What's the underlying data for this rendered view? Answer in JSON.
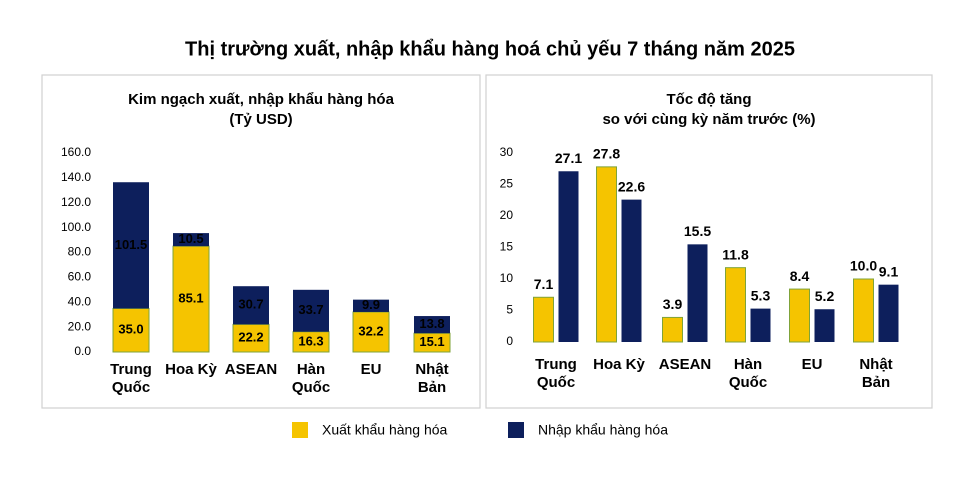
{
  "title": "Thị trường xuất, nhập khẩu hàng hoá chủ yếu 7 tháng năm 2025",
  "chart_data": [
    {
      "type": "stacked-bar",
      "title": "Kim ngạch xuất, nhập khẩu hàng hóa",
      "subtitle": "(Tỷ USD)",
      "categories": [
        "Trung\nQuốc",
        "Hoa Kỳ",
        "ASEAN",
        "Hàn\nQuốc",
        "EU",
        "Nhật\nBản"
      ],
      "series": [
        {
          "name": "Xuất khẩu hàng hóa",
          "color": "#f5c400",
          "values": [
            35.0,
            85.1,
            22.2,
            16.3,
            32.2,
            15.1
          ],
          "value_labels": [
            "35.0",
            "85.1",
            "22.2",
            "16.3",
            "32.2",
            "15.1"
          ]
        },
        {
          "name": "Nhập khẩu hàng hóa",
          "color": "#0d1f5c",
          "values": [
            101.5,
            10.5,
            30.7,
            33.7,
            9.9,
            13.8
          ]
        }
      ],
      "ylim": [
        0,
        160
      ],
      "yticks": [
        {
          "value": 0,
          "label": "0.0"
        },
        {
          "value": 20,
          "label": "20.0"
        },
        {
          "value": 40,
          "label": "40.0"
        },
        {
          "value": 60,
          "label": "60.0"
        },
        {
          "value": 80,
          "label": "80.0"
        },
        {
          "value": 100,
          "label": "100.0"
        },
        {
          "value": 120,
          "label": "120.0"
        },
        {
          "value": 140,
          "label": "140.0"
        },
        {
          "value": 160,
          "label": "160.0"
        }
      ]
    },
    {
      "type": "bar",
      "title": "Tốc độ tăng",
      "subtitle": "so với cùng kỳ năm trước (%)",
      "categories": [
        "Trung\nQuốc",
        "Hoa Kỳ",
        "ASEAN",
        "Hàn\nQuốc",
        "EU",
        "Nhật\nBản"
      ],
      "series": [
        {
          "color": "#f5c400",
          "values": [
            7.1,
            27.8,
            3.9,
            11.8,
            8.4,
            10.0
          ],
          "value_labels": [
            "7.1",
            "27.8",
            "3.9",
            "11.8",
            "8.4",
            "10.0"
          ]
        },
        {
          "color": "#0d1f5c",
          "values": [
            27.1,
            22.6,
            15.5,
            5.3,
            5.2,
            9.1
          ]
        }
      ],
      "ylim": [
        0,
        30
      ],
      "yticks": [
        0,
        5,
        10,
        15,
        20,
        25,
        30
      ]
    }
  ]
}
